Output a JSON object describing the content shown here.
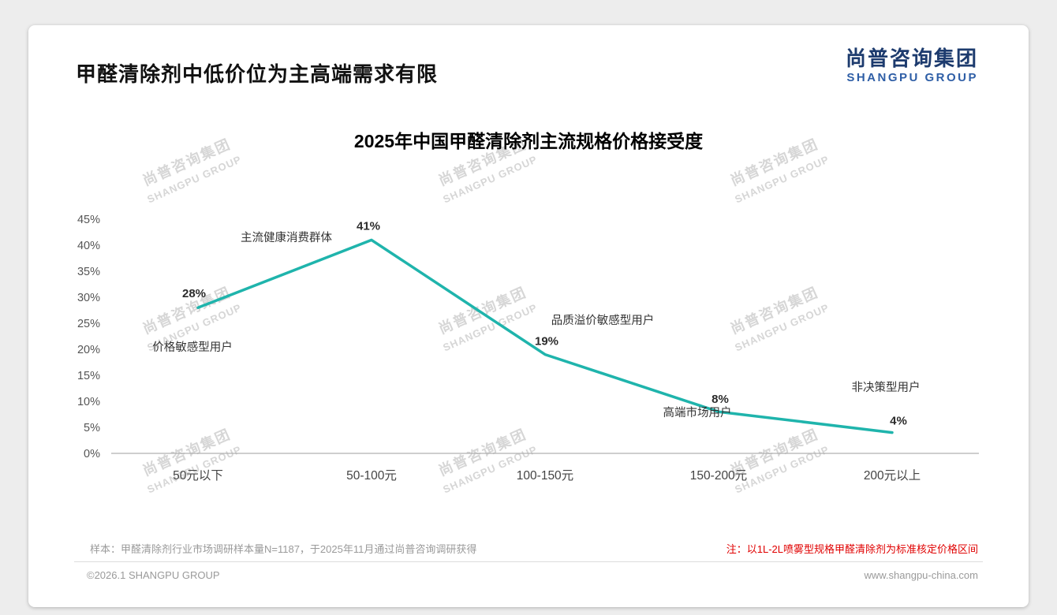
{
  "header": {
    "title": "甲醛清除剂中低价位为主高端需求有限"
  },
  "logo": {
    "cn": "尚普咨询集团",
    "en": "SHANGPU GROUP"
  },
  "watermark": {
    "cn": "尚普咨询集团",
    "en": "SHANGPU GROUP"
  },
  "chart_data": {
    "type": "line",
    "title": "2025年中国甲醛清除剂主流规格价格接受度",
    "categories": [
      "50元以下",
      "50-100元",
      "100-150元",
      "150-200元",
      "200元以上"
    ],
    "values": [
      28,
      41,
      19,
      8,
      4
    ],
    "value_labels": [
      "28%",
      "41%",
      "19%",
      "8%",
      "4%"
    ],
    "ylim": [
      0,
      45
    ],
    "ytick_step": 5,
    "ytick_suffix": "%",
    "grid": false,
    "legend": "none",
    "line_color": "#1fb4ac",
    "annotations": [
      {
        "text": "价格敏感型用户",
        "point": 0
      },
      {
        "text": "主流健康消费群体",
        "point": 1
      },
      {
        "text": "品质溢价敏感型用户",
        "point": 2
      },
      {
        "text": "高端市场用户",
        "point": 3
      },
      {
        "text": "非决策型用户",
        "point": 4
      }
    ]
  },
  "notes": {
    "sample": "样本：甲醛清除剂行业市场调研样本量N=1187，于2025年11月通过尚普咨询调研获得",
    "price": "注：以1L-2L喷雾型规格甲醛清除剂为标准核定价格区间"
  },
  "footer": {
    "copyright": "©2026.1 SHANGPU GROUP",
    "website": "www.shangpu-china.com"
  },
  "colors": {
    "accent": "#1fb4ac",
    "logo_navy": "#1d3b6e",
    "logo_blue": "#2e5ea6",
    "note_red": "#e00000",
    "axis": "#b0b0b0"
  }
}
